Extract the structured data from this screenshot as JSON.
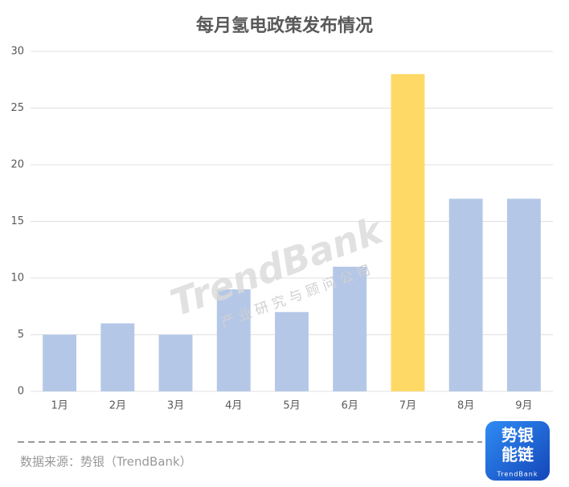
{
  "chart_data": {
    "type": "bar",
    "title": "每月氢电政策发布情况",
    "categories": [
      "1月",
      "2月",
      "3月",
      "4月",
      "5月",
      "6月",
      "7月",
      "8月",
      "9月"
    ],
    "values": [
      5,
      6,
      5,
      9,
      7,
      11,
      28,
      17,
      17
    ],
    "colors": [
      "#b4c7e7",
      "#b4c7e7",
      "#b4c7e7",
      "#b4c7e7",
      "#b4c7e7",
      "#b4c7e7",
      "#ffd966",
      "#b4c7e7",
      "#b4c7e7"
    ],
    "ylim": [
      0,
      30
    ],
    "yticks": [
      0,
      5,
      10,
      15,
      20,
      25,
      30
    ],
    "grid": true,
    "source": "数据来源：势银（TrendBank）",
    "watermark": "TrendBank",
    "watermark_subtitle": "产 业 研 究 与 顾 问 公 司",
    "logo_lines": [
      "势银",
      "能链",
      "TrendBank"
    ]
  }
}
